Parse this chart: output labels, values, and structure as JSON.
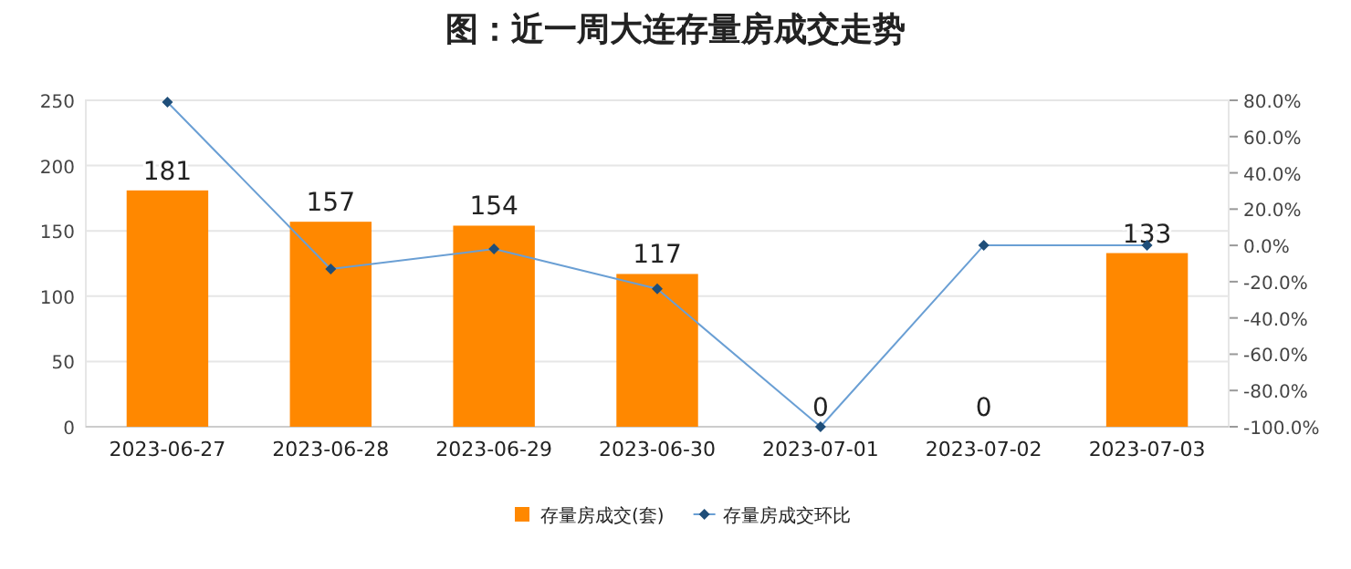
{
  "chart_data": {
    "type": "bar",
    "title": "图：近一周大连存量房成交走势",
    "categories": [
      "2023-06-27",
      "2023-06-28",
      "2023-06-29",
      "2023-06-30",
      "2023-07-01",
      "2023-07-02",
      "2023-07-03"
    ],
    "series": [
      {
        "name": "存量房成交(套)",
        "color": "#ff8800",
        "values": [
          181,
          157,
          154,
          117,
          0,
          0,
          133
        ],
        "value_labels": [
          "181",
          "157",
          "154",
          "117",
          "0",
          "0",
          "133"
        ]
      },
      {
        "name": "存量房成交环比",
        "type": "line",
        "axis": "y2",
        "color": "#6a9fd4",
        "marker": "diamond",
        "values": [
          79,
          -13,
          -2,
          -24,
          -100,
          0,
          0
        ]
      }
    ],
    "ylim": [
      0,
      250
    ],
    "yticks": [
      0,
      50,
      100,
      150,
      200,
      250
    ],
    "y2lim": [
      -100,
      80
    ],
    "y2ticks": [
      {
        "value": -100,
        "label": "-100.0%"
      },
      {
        "value": -80,
        "label": "-80.0%"
      },
      {
        "value": -60,
        "label": "-60.0%"
      },
      {
        "value": -40,
        "label": "-40.0%"
      },
      {
        "value": -20,
        "label": "-20.0%"
      },
      {
        "value": 0,
        "label": "0.0%"
      },
      {
        "value": 20,
        "label": "20.0%"
      },
      {
        "value": 40,
        "label": "40.0%"
      },
      {
        "value": 60,
        "label": "60.0%"
      },
      {
        "value": 80,
        "label": "80.0%"
      }
    ],
    "grid": "y",
    "legend": "bottom"
  }
}
